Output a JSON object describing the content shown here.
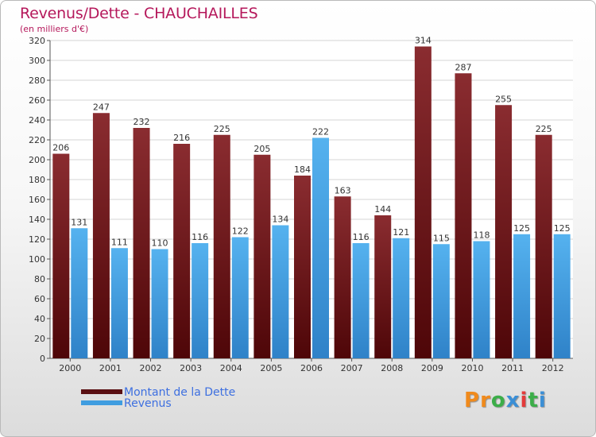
{
  "chart_data": {
    "type": "bar",
    "title": "Revenus/Dette - CHAUCHAILLES",
    "subtitle": "(en milliers d'€)",
    "categories": [
      "2000",
      "2001",
      "2002",
      "2003",
      "2004",
      "2005",
      "2006",
      "2007",
      "2008",
      "2009",
      "2010",
      "2011",
      "2012"
    ],
    "series": [
      {
        "name": "Montant de la Dette",
        "color": "#7a1f24",
        "values": [
          206,
          247,
          232,
          216,
          225,
          205,
          184,
          163,
          144,
          314,
          287,
          255,
          225
        ]
      },
      {
        "name": "Revenus",
        "color": "#3f9de0",
        "values": [
          131,
          111,
          110,
          116,
          122,
          134,
          222,
          116,
          121,
          115,
          118,
          125,
          125
        ]
      }
    ],
    "ylim": [
      0,
      320
    ],
    "yticks": [
      0,
      20,
      40,
      60,
      80,
      100,
      120,
      140,
      160,
      180,
      200,
      220,
      240,
      260,
      280,
      300,
      320
    ],
    "grid": true,
    "legend_position": "bottom-left"
  },
  "legend": {
    "items": [
      {
        "label": "Montant de la Dette",
        "color": "#5a0f12"
      },
      {
        "label": "Revenus",
        "color": "#3f9de0"
      }
    ]
  },
  "brand": {
    "letters": [
      "P",
      "r",
      "o",
      "x",
      "i",
      "t",
      "i"
    ],
    "colors": [
      "#f08a1c",
      "#f08a1c",
      "#3cae49",
      "#3b8fd6",
      "#e33b3b",
      "#3cae49",
      "#3b8fd6"
    ]
  }
}
